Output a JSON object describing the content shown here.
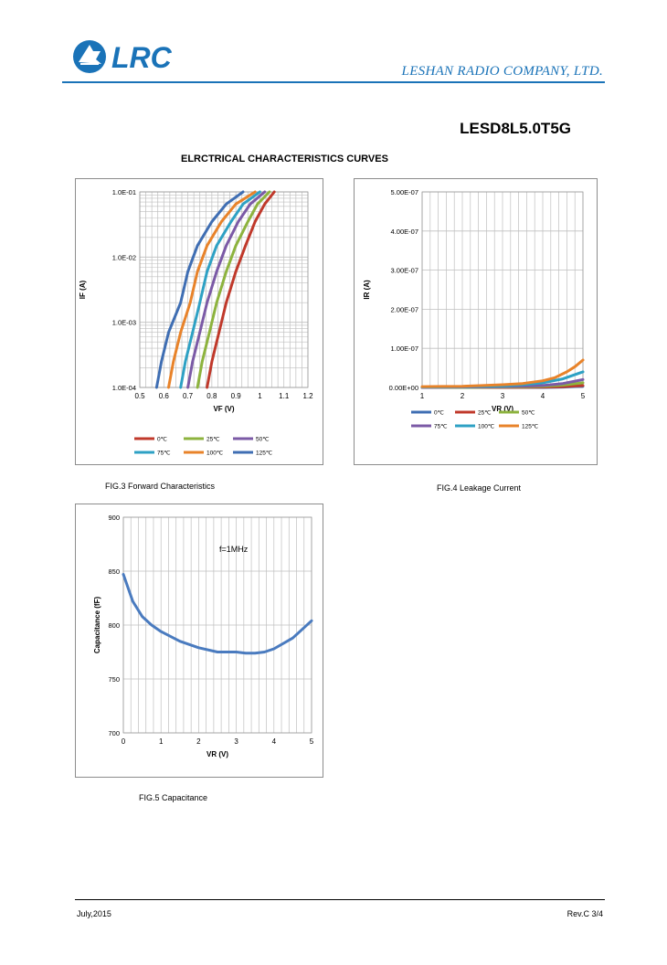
{
  "header": {
    "logo_text": "LRC",
    "company": "LESHAN RADIO COMPANY, LTD.",
    "part_number": "LESD8L5.0T5G",
    "section_title": "ELRCTRICAL CHARACTERISTICS CURVES"
  },
  "colors": {
    "brand": "#1a73b8",
    "grid": "#bfbfbf"
  },
  "chart_data": [
    {
      "id": "fig3",
      "type": "line",
      "title": "FIG.3 Forward Characteristics",
      "xlabel": "VF (V)",
      "ylabel": "IF (A)",
      "y_scale": "log",
      "xlim": [
        0.5,
        1.2
      ],
      "ylim": [
        0.0001,
        0.1
      ],
      "x_ticks": [
        "0.5",
        "0.6",
        "0.7",
        "0.8",
        "0.9",
        "1",
        "1.1",
        "1.2"
      ],
      "y_ticks": [
        "1.0E-04",
        "1.0E-03",
        "1.0E-02",
        "1.0E-01"
      ],
      "legend_columns": 3,
      "series": [
        {
          "name": "0℃",
          "color": "#c0392b",
          "x": [
            0.78,
            0.8,
            0.83,
            0.86,
            0.9,
            0.94,
            0.98,
            1.02,
            1.06
          ],
          "y": [
            0.0001,
            0.00025,
            0.0007,
            0.002,
            0.006,
            0.015,
            0.035,
            0.065,
            0.1
          ]
        },
        {
          "name": "25℃",
          "color": "#8db33e",
          "x": [
            0.74,
            0.76,
            0.79,
            0.82,
            0.86,
            0.9,
            0.95,
            0.99,
            1.04
          ],
          "y": [
            0.0001,
            0.00025,
            0.0007,
            0.002,
            0.006,
            0.015,
            0.035,
            0.065,
            0.1
          ]
        },
        {
          "name": "50℃",
          "color": "#7b5aa6",
          "x": [
            0.7,
            0.72,
            0.75,
            0.78,
            0.82,
            0.86,
            0.91,
            0.96,
            1.02
          ],
          "y": [
            0.0001,
            0.00025,
            0.0007,
            0.002,
            0.006,
            0.015,
            0.035,
            0.065,
            0.1
          ]
        },
        {
          "name": "75℃",
          "color": "#2ea1c4",
          "x": [
            0.67,
            0.69,
            0.72,
            0.75,
            0.78,
            0.82,
            0.88,
            0.93,
            1.0
          ],
          "y": [
            0.0001,
            0.00025,
            0.0007,
            0.002,
            0.006,
            0.015,
            0.035,
            0.065,
            0.1
          ]
        },
        {
          "name": "100℃",
          "color": "#e8832a",
          "x": [
            0.62,
            0.64,
            0.67,
            0.71,
            0.74,
            0.78,
            0.84,
            0.9,
            0.98
          ],
          "y": [
            0.0001,
            0.00025,
            0.0007,
            0.002,
            0.006,
            0.015,
            0.035,
            0.065,
            0.1
          ]
        },
        {
          "name": "125℃",
          "color": "#3f6eb3",
          "x": [
            0.57,
            0.59,
            0.62,
            0.67,
            0.7,
            0.74,
            0.8,
            0.86,
            0.93
          ],
          "y": [
            0.0001,
            0.00025,
            0.0007,
            0.002,
            0.006,
            0.015,
            0.035,
            0.065,
            0.1
          ]
        }
      ]
    },
    {
      "id": "fig4",
      "type": "line",
      "title": "FIG.4 Leakage Current",
      "xlabel": "VR (V)",
      "ylabel": "IR (A)",
      "y_scale": "linear",
      "xlim": [
        1,
        5
      ],
      "ylim": [
        0,
        5e-07
      ],
      "x_ticks": [
        "1",
        "2",
        "3",
        "4",
        "5"
      ],
      "y_ticks": [
        "0.00E+00",
        "1.00E-07",
        "2.00E-07",
        "3.00E-07",
        "4.00E-07",
        "5.00E-07"
      ],
      "legend_columns": 3,
      "series": [
        {
          "name": "0℃",
          "color": "#3f6eb3",
          "x": [
            1,
            2,
            3,
            4,
            4.5,
            5
          ],
          "y": [
            0,
            0,
            0,
            0,
            1e-09,
            3e-09
          ]
        },
        {
          "name": "25℃",
          "color": "#c0392b",
          "x": [
            1,
            2,
            3,
            4,
            4.5,
            5
          ],
          "y": [
            0,
            0,
            0,
            1e-09,
            2e-09,
            5e-09
          ]
        },
        {
          "name": "50℃",
          "color": "#8db33e",
          "x": [
            1,
            2,
            3,
            4,
            4.5,
            5
          ],
          "y": [
            0,
            0,
            1e-09,
            3e-09,
            6e-09,
            1.2e-08
          ]
        },
        {
          "name": "75℃",
          "color": "#7b5aa6",
          "x": [
            1,
            2,
            3,
            4,
            4.5,
            5
          ],
          "y": [
            0,
            1e-09,
            2e-09,
            5e-09,
            1e-08,
            2e-08
          ]
        },
        {
          "name": "100℃",
          "color": "#2ea1c4",
          "x": [
            1,
            2,
            3,
            3.5,
            4,
            4.5,
            5
          ],
          "y": [
            1e-09,
            2e-09,
            4e-09,
            7e-09,
            1.2e-08,
            2.2e-08,
            4e-08
          ]
        },
        {
          "name": "125℃",
          "color": "#e8832a",
          "x": [
            1,
            1.5,
            2,
            2.5,
            3,
            3.5,
            4,
            4.3,
            4.6,
            4.8,
            5
          ],
          "y": [
            2e-09,
            2.5e-09,
            3e-09,
            5e-09,
            7e-09,
            1e-08,
            1.7e-08,
            2.5e-08,
            4e-08,
            5.3e-08,
            7e-08
          ]
        }
      ]
    },
    {
      "id": "fig5",
      "type": "line",
      "title": "FIG.5 Capacitance",
      "xlabel": "VR (V)",
      "ylabel": "Capacitance (fF)",
      "y_scale": "linear",
      "xlim": [
        0,
        5
      ],
      "ylim": [
        700,
        900
      ],
      "x_ticks": [
        "0",
        "1",
        "2",
        "3",
        "4",
        "5"
      ],
      "y_ticks": [
        "700",
        "750",
        "800",
        "850",
        "900"
      ],
      "annotation": "f=1MHz",
      "series": [
        {
          "name": "Capacitance",
          "color": "#4a7bbf",
          "x": [
            0,
            0.25,
            0.5,
            0.75,
            1.0,
            1.5,
            2.0,
            2.5,
            3.0,
            3.25,
            3.5,
            3.75,
            4.0,
            4.5,
            5.0
          ],
          "y": [
            847,
            822,
            808,
            800,
            794,
            785,
            779,
            775,
            775,
            774,
            774,
            775,
            778,
            788,
            804
          ]
        }
      ]
    }
  ],
  "footer": {
    "date": "July,2015",
    "revision": "Rev.C 3/4"
  }
}
